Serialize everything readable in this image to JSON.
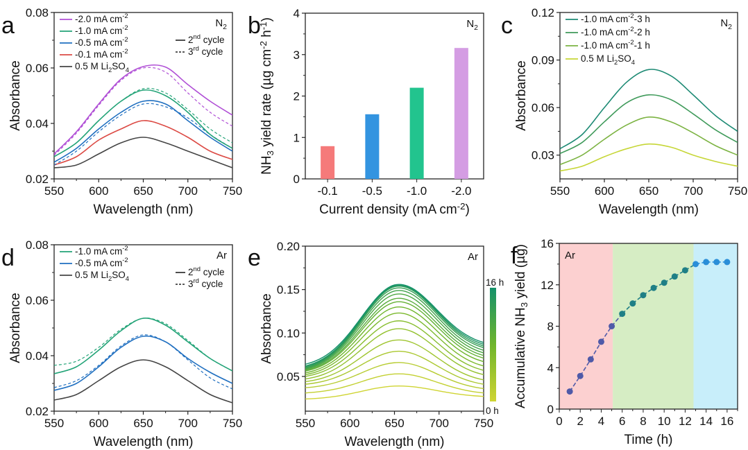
{
  "chart_data": [
    {
      "id": "a",
      "panel_label": "a",
      "type": "line",
      "xlabel": "Wavelength (nm)",
      "ylabel": "Absorbance",
      "xlim": [
        550,
        750
      ],
      "ylim": [
        0.02,
        0.08
      ],
      "xticks": [
        550,
        600,
        650,
        700,
        750
      ],
      "yticks": [
        0.02,
        0.04,
        0.06,
        0.08
      ],
      "ytick_labels": [
        "0.02",
        "0.04",
        "0.06",
        "0.08"
      ],
      "annotation": "N2",
      "style_legend": [
        {
          "label": "2nd cycle",
          "dash": false
        },
        {
          "label": "3rd cycle",
          "dash": true
        }
      ],
      "x": [
        550,
        575,
        600,
        625,
        650,
        675,
        700,
        725,
        750
      ],
      "series": [
        {
          "name": "-2.0 mA cm-2",
          "color": "#b04fd6",
          "values": [
            0.029,
            0.037,
            0.047,
            0.056,
            0.0605,
            0.0603,
            0.054,
            0.048,
            0.043
          ],
          "dashed_values": [
            0.0285,
            0.0365,
            0.0465,
            0.0555,
            0.06,
            0.0585,
            0.051,
            0.044,
            0.039
          ]
        },
        {
          "name": "-1.0 mA cm-2",
          "color": "#22a377",
          "values": [
            0.028,
            0.033,
            0.041,
            0.048,
            0.052,
            0.05,
            0.044,
            0.036,
            0.031
          ],
          "dashed_values": [
            0.028,
            0.033,
            0.041,
            0.048,
            0.0525,
            0.051,
            0.045,
            0.038,
            0.033
          ]
        },
        {
          "name": "-0.5 mA cm-2",
          "color": "#1f6fc0",
          "values": [
            0.026,
            0.031,
            0.038,
            0.044,
            0.048,
            0.047,
            0.041,
            0.035,
            0.03
          ],
          "dashed_values": [
            0.025,
            0.03,
            0.037,
            0.043,
            0.047,
            0.046,
            0.042,
            0.036,
            0.031
          ]
        },
        {
          "name": "-0.1 mA cm-2",
          "color": "#dc4b45",
          "values": [
            0.025,
            0.028,
            0.034,
            0.038,
            0.041,
            0.039,
            0.035,
            0.03,
            0.027
          ],
          "dashed_values": [
            0.025,
            0.028,
            0.034,
            0.038,
            0.041,
            0.039,
            0.035,
            0.03,
            0.027
          ]
        },
        {
          "name": "0.5 M Li2SO4",
          "color": "#444444",
          "values": [
            0.024,
            0.025,
            0.029,
            0.033,
            0.035,
            0.033,
            0.03,
            0.027,
            0.024
          ]
        }
      ]
    },
    {
      "id": "b",
      "panel_label": "b",
      "type": "bar",
      "xlabel": "Current density (mA cm-2)",
      "ylabel": "NH3 yield rate (µg cm-2 h-1)",
      "categories": [
        "-0.1",
        "-0.5",
        "-1.0",
        "-2.0"
      ],
      "values": [
        0.79,
        1.56,
        2.2,
        3.16
      ],
      "colors": [
        "#f57a7a",
        "#3394e0",
        "#22c48e",
        "#d49de3"
      ],
      "ylim": [
        0,
        4
      ],
      "yticks": [
        0,
        1,
        2,
        3,
        4
      ],
      "ytick_labels": [
        "0",
        "1",
        "2",
        "3",
        "4"
      ],
      "annotation": "N2"
    },
    {
      "id": "c",
      "panel_label": "c",
      "type": "line",
      "xlabel": "Wavelength (nm)",
      "ylabel": "Absorbance",
      "xlim": [
        550,
        750
      ],
      "ylim": [
        0.015,
        0.12
      ],
      "xticks": [
        550,
        600,
        650,
        700,
        750
      ],
      "yticks": [
        0.03,
        0.06,
        0.09,
        0.12
      ],
      "ytick_labels": [
        "0.03",
        "0.06",
        "0.09",
        "0.12"
      ],
      "annotation": "N2",
      "x": [
        550,
        575,
        600,
        625,
        650,
        675,
        700,
        725,
        750
      ],
      "series": [
        {
          "name": "-1.0 mA cm-2-3 h",
          "color": "#1d8a74",
          "values": [
            0.034,
            0.043,
            0.06,
            0.076,
            0.084,
            0.08,
            0.068,
            0.055,
            0.045
          ]
        },
        {
          "name": "-1.0 mA cm-2-2 h",
          "color": "#3f9a5a",
          "values": [
            0.031,
            0.038,
            0.051,
            0.063,
            0.068,
            0.065,
            0.056,
            0.046,
            0.038
          ]
        },
        {
          "name": "-1.0 mA cm-2-1 h",
          "color": "#7cb342",
          "values": [
            0.024,
            0.03,
            0.04,
            0.049,
            0.054,
            0.051,
            0.044,
            0.036,
            0.03
          ]
        },
        {
          "name": "0.5 M Li2SO4",
          "color": "#c6d636",
          "values": [
            0.02,
            0.023,
            0.029,
            0.034,
            0.037,
            0.035,
            0.03,
            0.026,
            0.023
          ]
        }
      ]
    },
    {
      "id": "d",
      "panel_label": "d",
      "type": "line",
      "xlabel": "Wavelength (nm)",
      "ylabel": "Absorbance",
      "xlim": [
        550,
        750
      ],
      "ylim": [
        0.02,
        0.08
      ],
      "xticks": [
        550,
        600,
        650,
        700,
        750
      ],
      "yticks": [
        0.02,
        0.04,
        0.06,
        0.08
      ],
      "ytick_labels": [
        "0.02",
        "0.04",
        "0.06",
        "0.08"
      ],
      "annotation": "Ar",
      "style_legend": [
        {
          "label": "2nd cycle",
          "dash": false
        },
        {
          "label": "3rd cycle",
          "dash": true
        }
      ],
      "x": [
        550,
        575,
        600,
        625,
        650,
        675,
        700,
        725,
        750
      ],
      "series": [
        {
          "name": "-1.0 mA cm-2",
          "color": "#22a377",
          "values": [
            0.0335,
            0.036,
            0.042,
            0.049,
            0.0535,
            0.051,
            0.045,
            0.039,
            0.0345
          ],
          "dashed_values": [
            0.0365,
            0.038,
            0.043,
            0.0495,
            0.0535,
            0.0515,
            0.0455,
            0.039,
            0.0345
          ]
        },
        {
          "name": "-0.5 mA cm-2",
          "color": "#1f6fc0",
          "values": [
            0.0275,
            0.03,
            0.036,
            0.043,
            0.047,
            0.045,
            0.039,
            0.034,
            0.03
          ],
          "dashed_values": [
            0.0285,
            0.031,
            0.0365,
            0.0435,
            0.0475,
            0.045,
            0.0385,
            0.032,
            0.028
          ]
        },
        {
          "name": "0.5 M Li2SO4",
          "color": "#444444",
          "values": [
            0.024,
            0.026,
            0.031,
            0.036,
            0.0385,
            0.036,
            0.031,
            0.026,
            0.023
          ]
        }
      ]
    },
    {
      "id": "e",
      "panel_label": "e",
      "type": "line",
      "xlabel": "Wavelength (nm)",
      "ylabel": "Absorbance",
      "xlim": [
        550,
        750
      ],
      "ylim": [
        0.01,
        0.2
      ],
      "xticks": [
        550,
        600,
        650,
        700,
        750
      ],
      "yticks": [
        0.05,
        0.1,
        0.15,
        0.2
      ],
      "ytick_labels": [
        "0.05",
        "0.10",
        "0.15",
        "0.20"
      ],
      "annotation": "Ar",
      "colorbar": {
        "top_label": "16 h",
        "bottom_label": "0 h",
        "top_color": "#14916a",
        "mid_color": "#6fb52c",
        "bottom_color": "#cfd432"
      },
      "time_hours": [
        0,
        1,
        2,
        3,
        4,
        5,
        6,
        7,
        8,
        9,
        10,
        11,
        12,
        13,
        14,
        15,
        16
      ],
      "peak_wavelength": 655,
      "values_at_550": [
        0.024,
        0.031,
        0.037,
        0.041,
        0.044,
        0.047,
        0.05,
        0.052,
        0.054,
        0.056,
        0.057,
        0.058,
        0.059,
        0.06,
        0.061,
        0.062,
        0.064
      ],
      "values_at_peak": [
        0.039,
        0.053,
        0.066,
        0.079,
        0.092,
        0.105,
        0.114,
        0.123,
        0.13,
        0.136,
        0.14,
        0.145,
        0.149,
        0.152,
        0.154,
        0.155,
        0.156
      ],
      "values_at_750": [
        0.027,
        0.031,
        0.036,
        0.041,
        0.046,
        0.052,
        0.057,
        0.062,
        0.067,
        0.071,
        0.074,
        0.077,
        0.08,
        0.083,
        0.085,
        0.087,
        0.089
      ]
    },
    {
      "id": "f",
      "panel_label": "f",
      "type": "scatter",
      "xlabel": "Time (h)",
      "ylabel": "Accumulative NH3 yield (µg)",
      "xlim": [
        0,
        17
      ],
      "ylim": [
        0,
        16
      ],
      "xticks": [
        0,
        2,
        4,
        6,
        8,
        10,
        12,
        14,
        16
      ],
      "yticks": [
        0,
        4,
        8,
        12,
        16
      ],
      "ytick_labels": [
        "0",
        "4",
        "8",
        "12",
        "16"
      ],
      "annotation": "Ar",
      "regions": [
        {
          "from": 0,
          "to": 5.1,
          "color": "#fcd0d0"
        },
        {
          "from": 5.1,
          "to": 12.8,
          "color": "#d6edc4"
        },
        {
          "from": 12.8,
          "to": 17,
          "color": "#c8eefa"
        }
      ],
      "x": [
        1,
        2,
        3,
        4,
        5,
        6,
        7,
        8,
        9,
        10,
        11,
        12,
        13,
        14,
        15,
        16
      ],
      "values": [
        1.7,
        3.2,
        4.8,
        6.5,
        8.0,
        9.2,
        10.2,
        11.0,
        11.7,
        12.2,
        12.8,
        13.4,
        14.0,
        14.2,
        14.2,
        14.2
      ],
      "segment_colors": [
        "#4f5aa8",
        "#1f7f86",
        "#2a8ed8"
      ]
    }
  ]
}
